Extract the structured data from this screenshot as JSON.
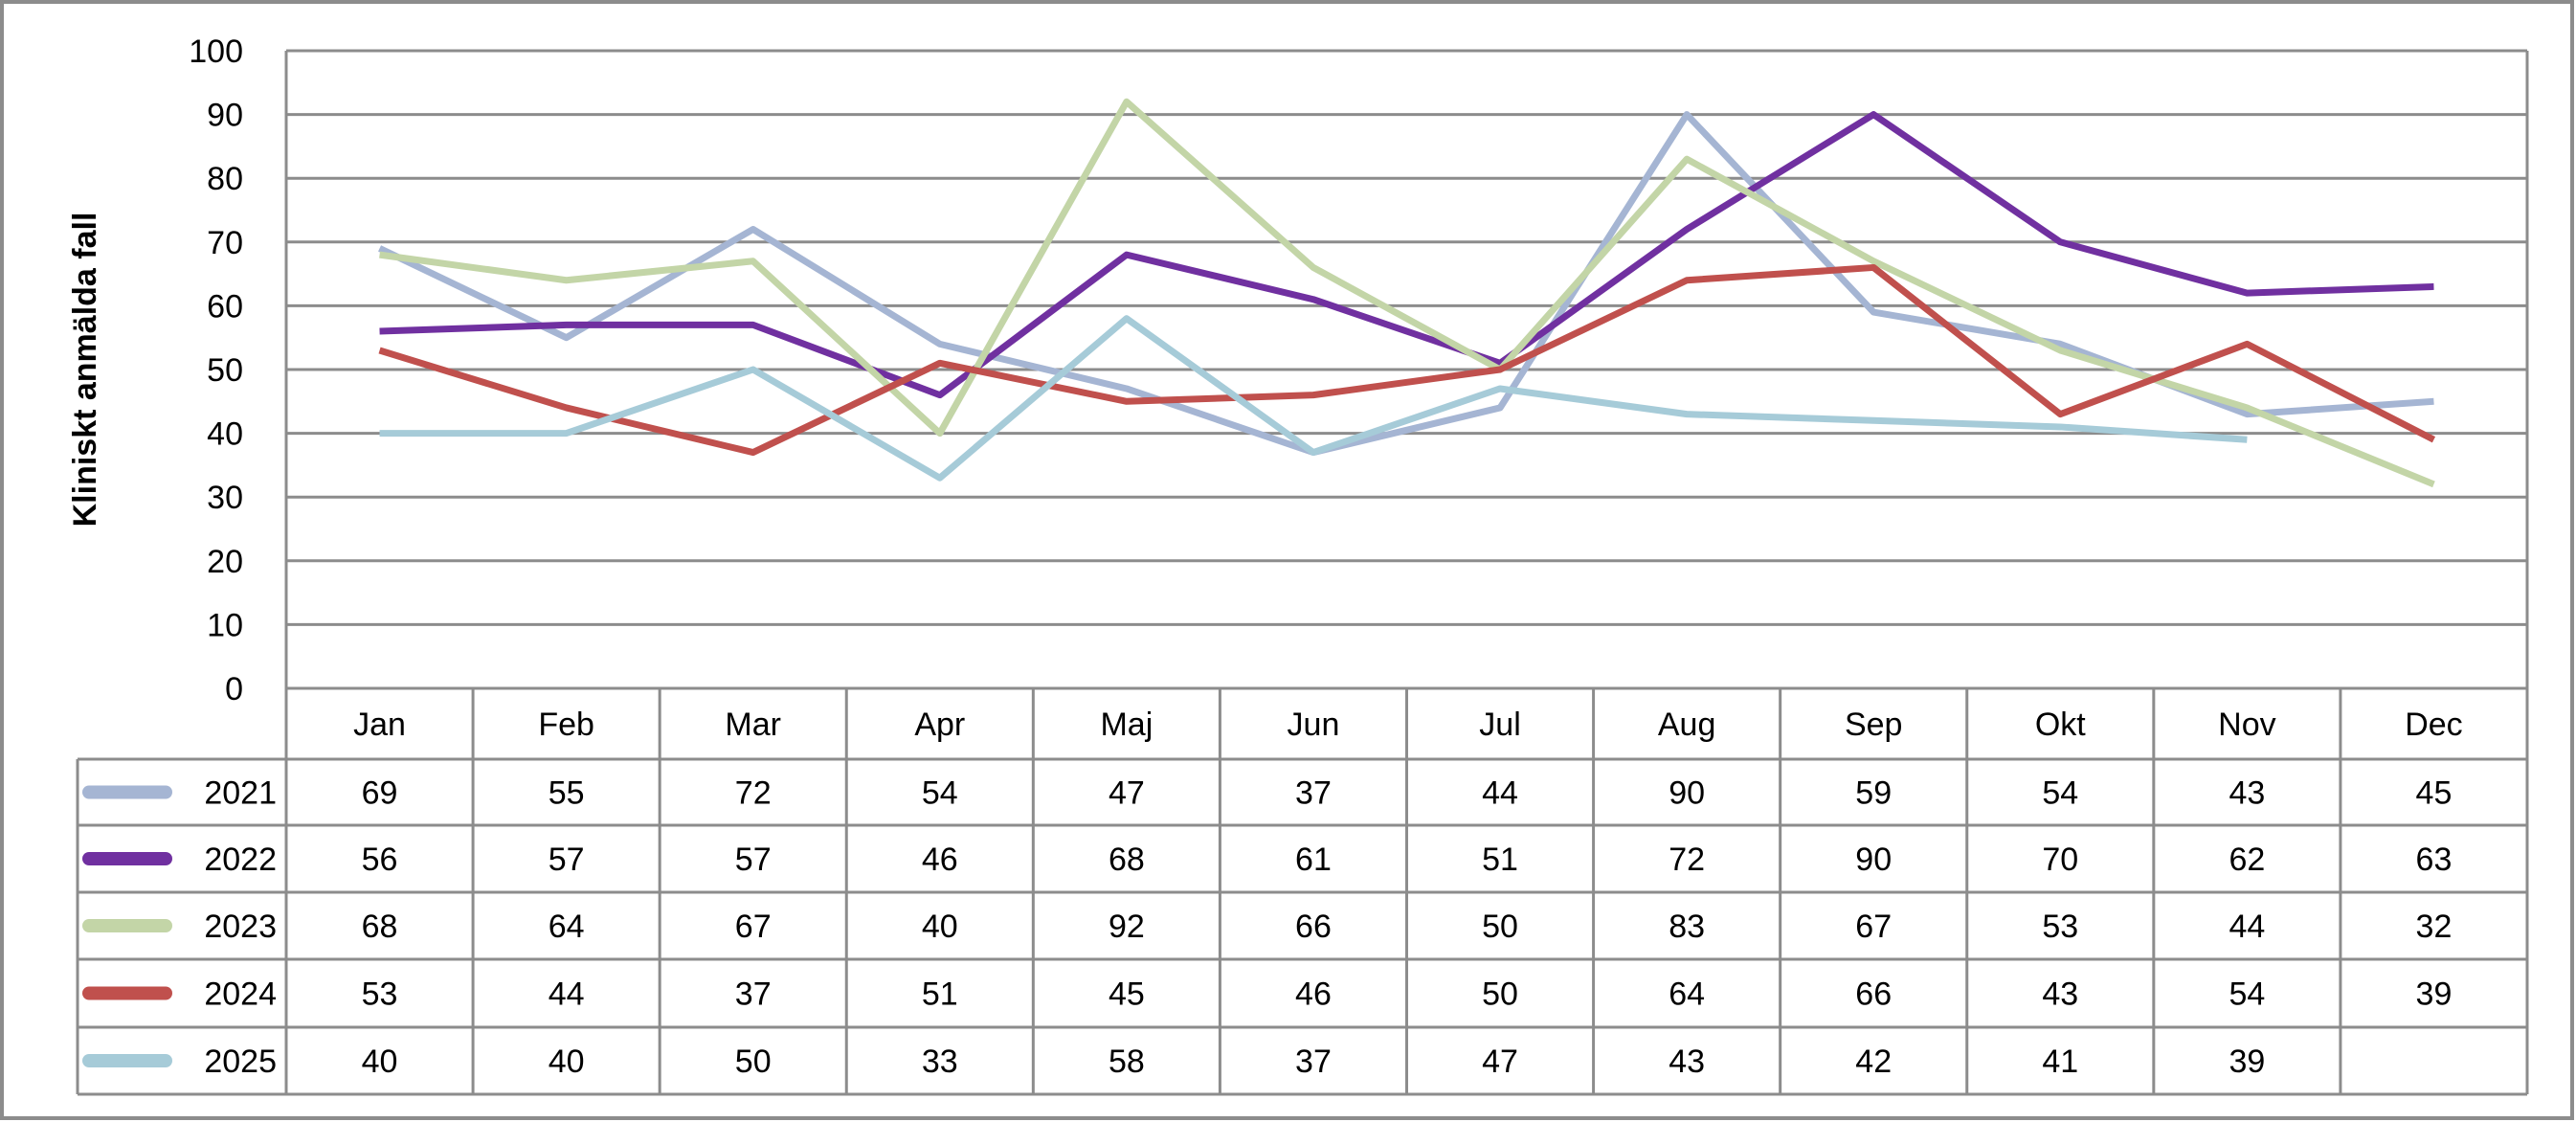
{
  "chart_data": {
    "type": "line",
    "title": "",
    "xlabel": "",
    "ylabel": "Kliniskt anmälda fall",
    "ylim": [
      0,
      100
    ],
    "yticks": [
      0,
      10,
      20,
      30,
      40,
      50,
      60,
      70,
      80,
      90,
      100
    ],
    "grid": true,
    "legend": "data-table-left",
    "categories": [
      "Jan",
      "Feb",
      "Mar",
      "Apr",
      "Maj",
      "Jun",
      "Jul",
      "Aug",
      "Sep",
      "Okt",
      "Nov",
      "Dec"
    ],
    "series": [
      {
        "name": "2021",
        "color": "#a5b5d3",
        "values": [
          69,
          55,
          72,
          54,
          47,
          37,
          44,
          90,
          59,
          54,
          43,
          45
        ]
      },
      {
        "name": "2022",
        "color": "#7030a0",
        "values": [
          56,
          57,
          57,
          46,
          68,
          61,
          51,
          72,
          90,
          70,
          62,
          63
        ]
      },
      {
        "name": "2023",
        "color": "#c3d5a7",
        "values": [
          68,
          64,
          67,
          40,
          92,
          66,
          50,
          83,
          67,
          53,
          44,
          32
        ]
      },
      {
        "name": "2024",
        "color": "#c0504d",
        "values": [
          53,
          44,
          37,
          51,
          45,
          46,
          50,
          64,
          66,
          43,
          54,
          39
        ]
      },
      {
        "name": "2025",
        "color": "#a6cbd8",
        "values": [
          40,
          40,
          50,
          33,
          58,
          37,
          47,
          43,
          42,
          41,
          39,
          null
        ]
      }
    ]
  }
}
